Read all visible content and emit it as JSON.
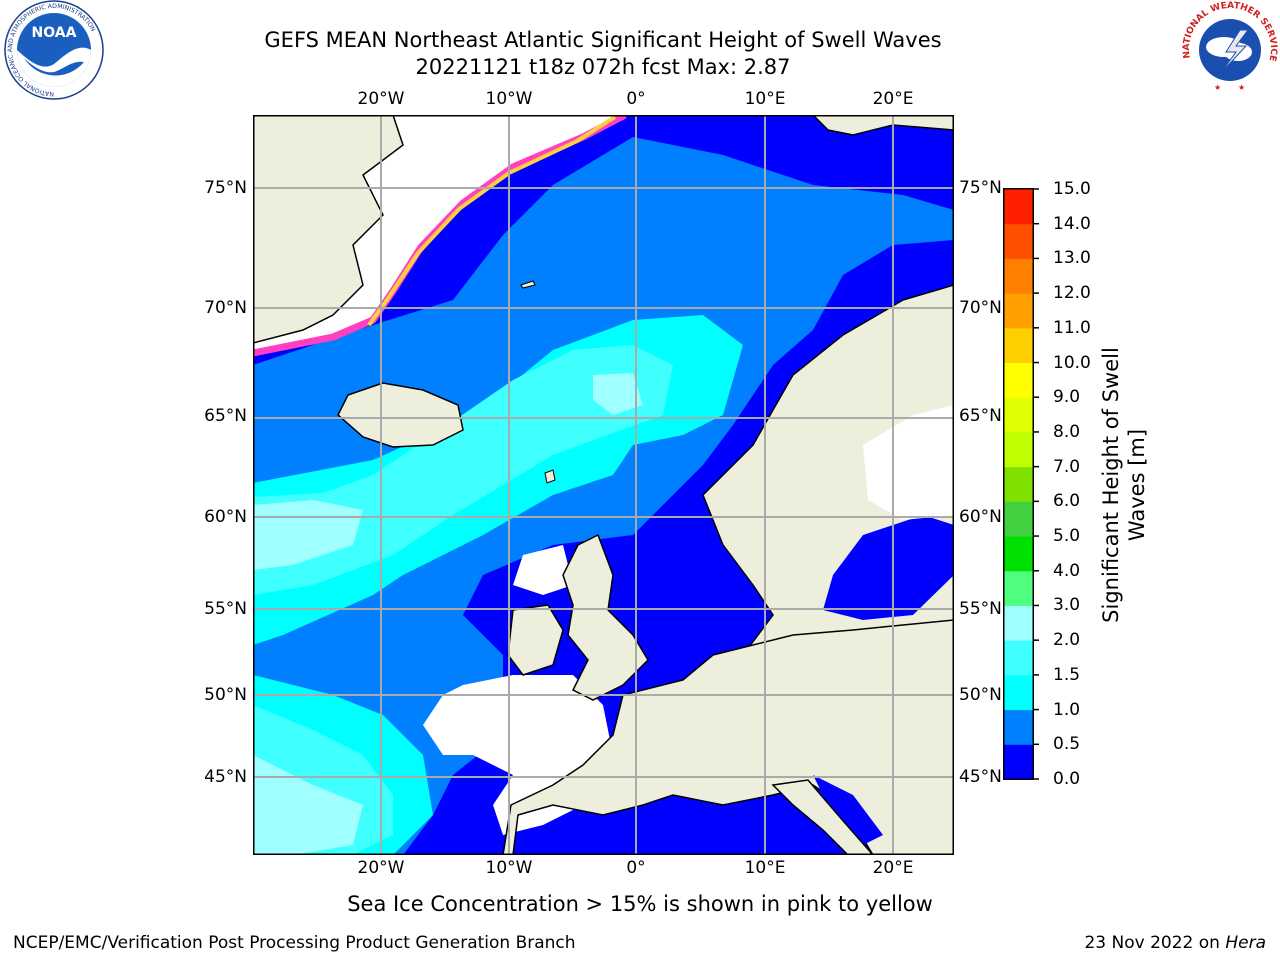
{
  "title_line1": "GEFS MEAN Northeast Atlantic Significant Height of Swell Waves",
  "title_line2": "20221121 t18z 072h fcst   Max: 2.87",
  "caption": "Sea Ice Concentration > 15% is shown in pink to yellow",
  "footer_left": "NCEP/EMC/Verification Post Processing Product Generation Branch",
  "footer_right_prefix": "23 Nov 2022 on ",
  "footer_right_machine": "Hera",
  "map": {
    "lon_labels": [
      "20°W",
      "10°W",
      "0°",
      "10°E",
      "20°E"
    ],
    "lat_labels": [
      "75°N",
      "70°N",
      "65°N",
      "60°N",
      "55°N",
      "50°N",
      "45°N"
    ],
    "colors": {
      "land": "#eeeedd",
      "grid": "#aaaaaa",
      "coast": "#000000"
    }
  },
  "colorbar": {
    "title_line1": "Significant Height of Swell",
    "title_line2": "Waves [m]",
    "labels": [
      "15.0",
      "14.0",
      "13.0",
      "12.0",
      "11.0",
      "10.0",
      "9.0",
      "8.0",
      "7.0",
      "6.0",
      "5.0",
      "4.0",
      "3.0",
      "2.0",
      "1.5",
      "1.0",
      "0.5",
      "0.0"
    ],
    "colors_bottom_to_top": [
      "#0000ff",
      "#0080ff",
      "#00ffff",
      "#40ffff",
      "#a0ffff",
      "#50ff80",
      "#00e000",
      "#40d040",
      "#80e000",
      "#c0ff00",
      "#e0ff00",
      "#ffff00",
      "#ffd000",
      "#ffa000",
      "#ff8000",
      "#ff5000",
      "#ff2000"
    ]
  },
  "logos": {
    "noaa_text": "NOAA",
    "noaa_ring": "NATIONAL OCEANIC AND ATMOSPHERIC ADMINISTRATION",
    "nws_ring": "NATIONAL WEATHER SERVICE"
  }
}
